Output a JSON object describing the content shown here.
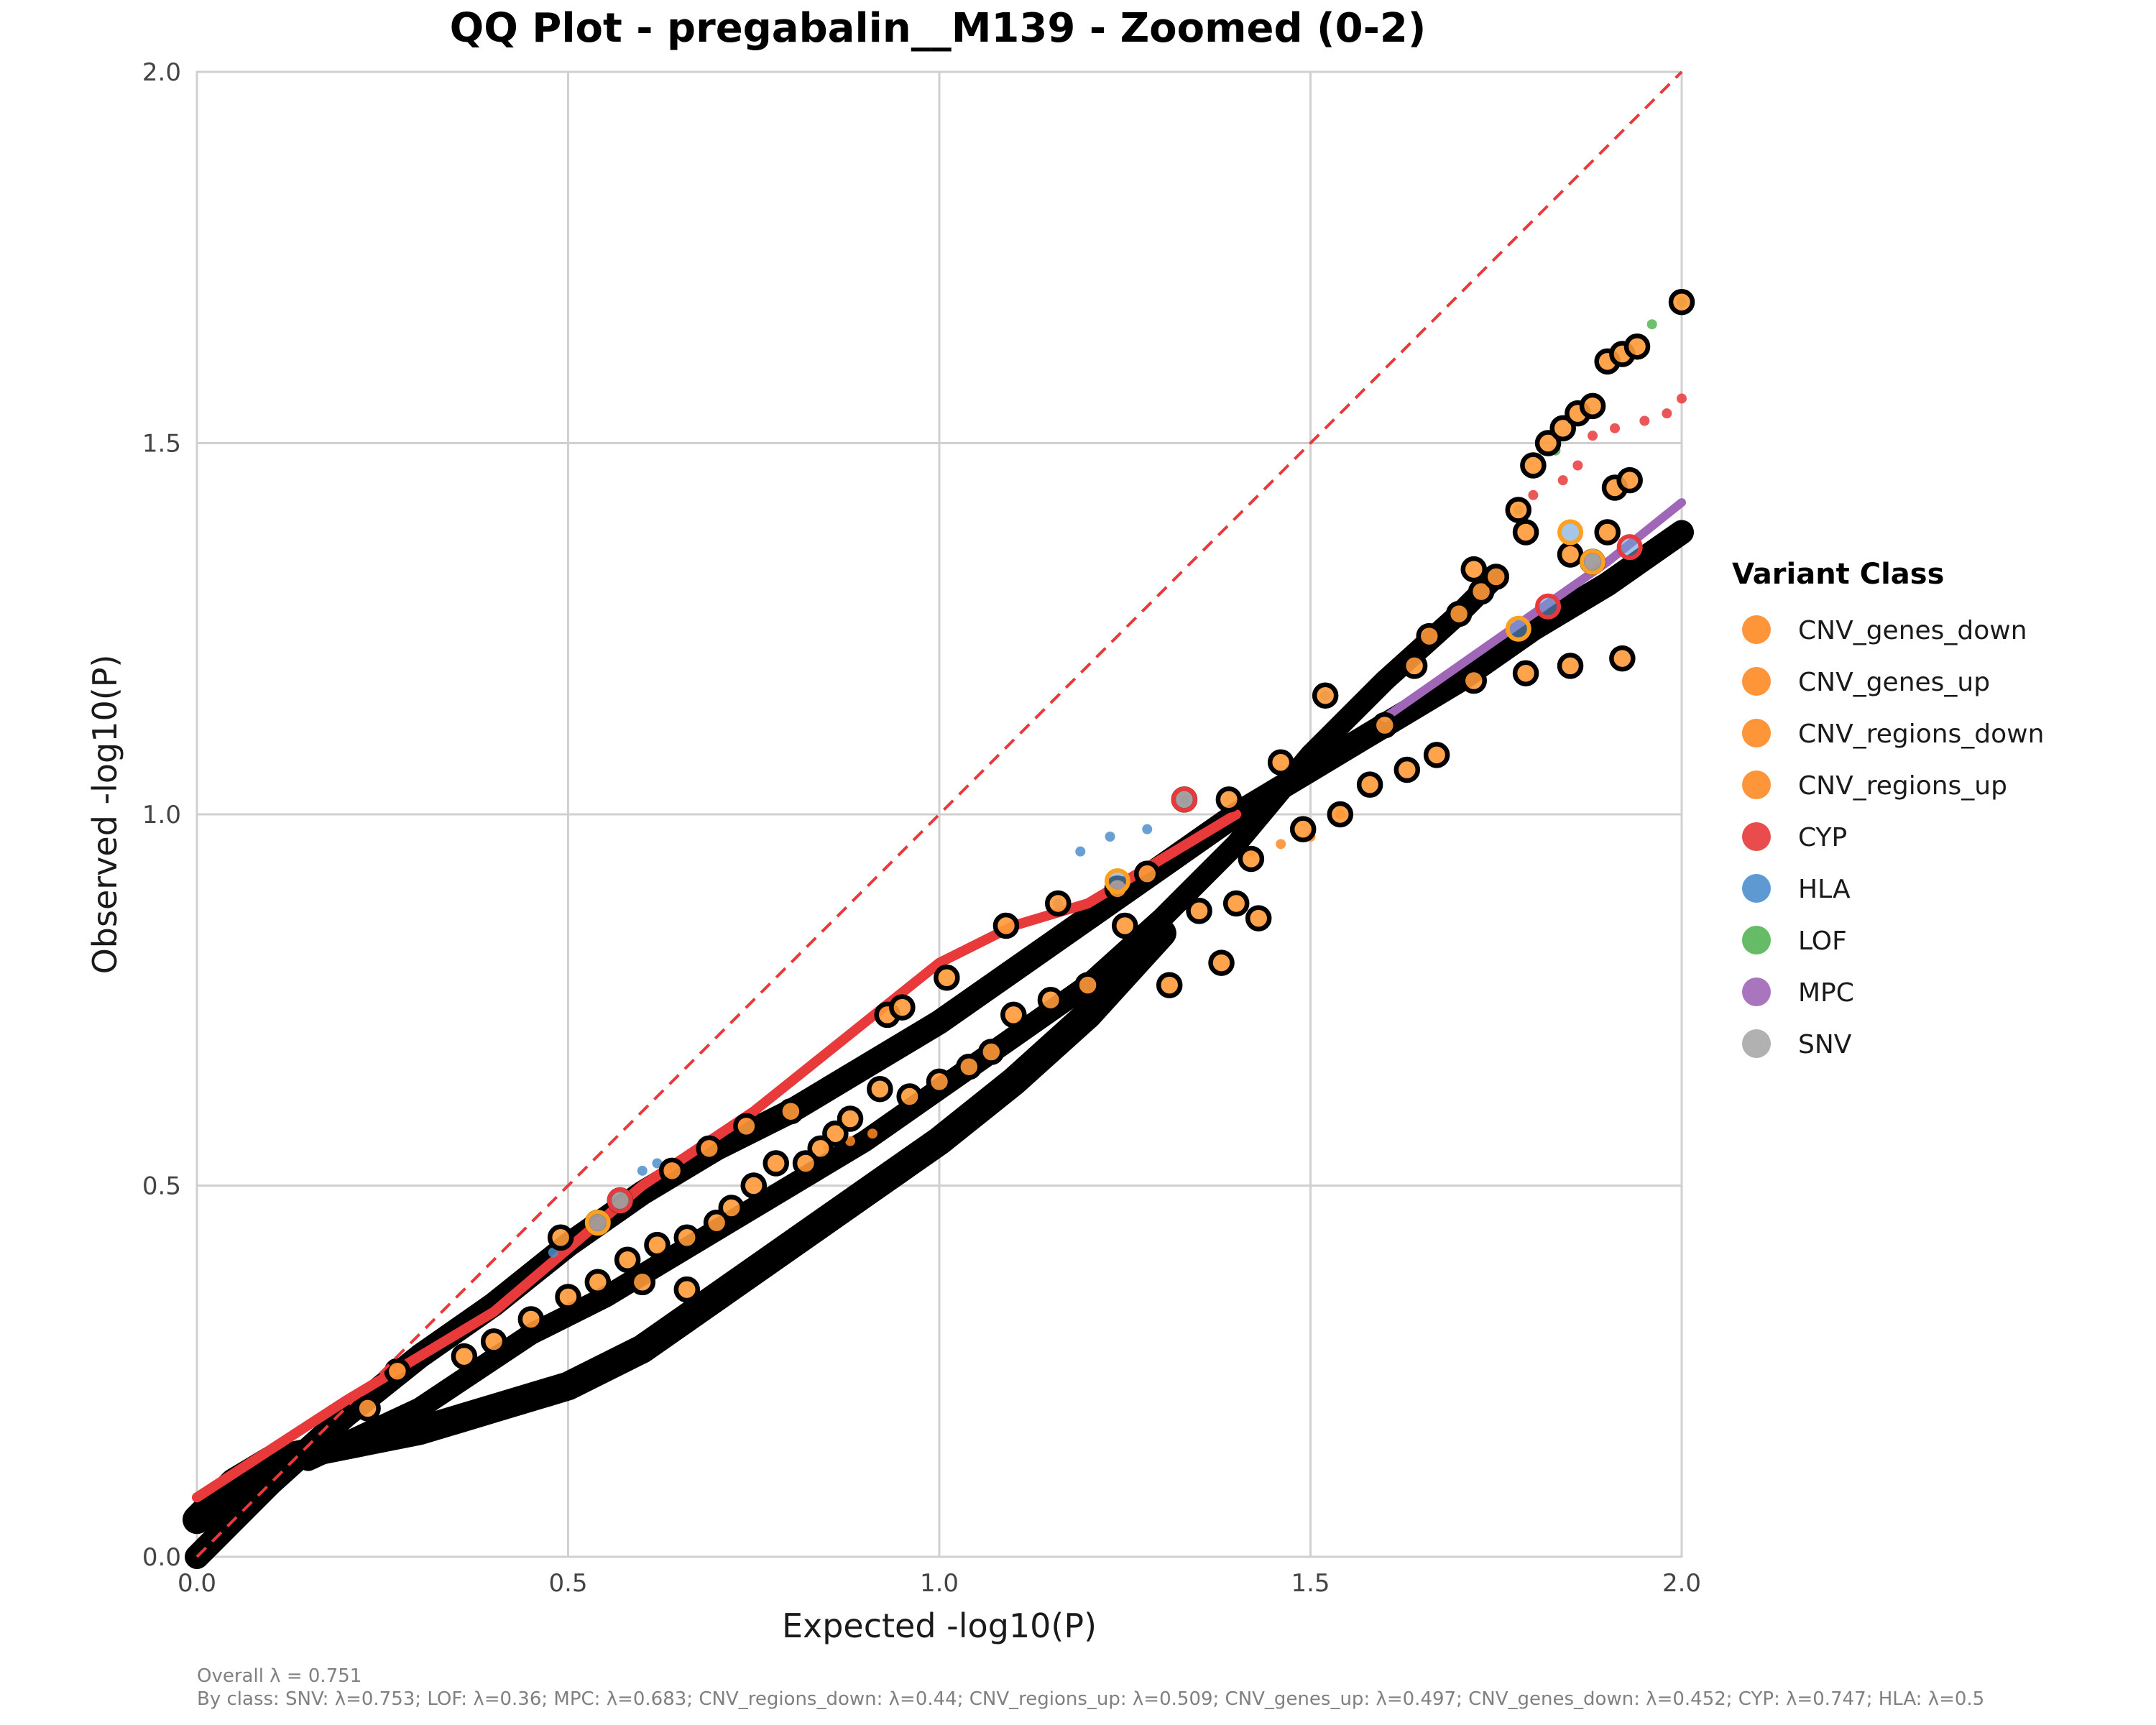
{
  "chart_data": {
    "type": "scatter",
    "title": "QQ Plot - pregabalin__M139 - Zoomed (0-2)",
    "xlabel": "Expected -log10(P)",
    "ylabel": "Observed -log10(P)",
    "xlim": [
      0,
      2
    ],
    "ylim": [
      0,
      2
    ],
    "xticks": [
      "0.0",
      "0.5",
      "1.0",
      "1.5",
      "2.0"
    ],
    "yticks": [
      "0.0",
      "0.5",
      "1.0",
      "1.5",
      "2.0"
    ],
    "grid": true,
    "reference_line": {
      "from": [
        0,
        0
      ],
      "to": [
        2,
        2
      ],
      "color": "#e8393b",
      "style": "dashed"
    },
    "legend": {
      "title": "Variant Class",
      "position": "right",
      "entries": [
        {
          "name": "CNV_genes_down",
          "color": "#ff8a24"
        },
        {
          "name": "CNV_genes_up",
          "color": "#ff8a24"
        },
        {
          "name": "CNV_regions_down",
          "color": "#ff8a24"
        },
        {
          "name": "CNV_regions_up",
          "color": "#ff8a24"
        },
        {
          "name": "CYP",
          "color": "#e8393b"
        },
        {
          "name": "HLA",
          "color": "#4d8fcc"
        },
        {
          "name": "LOF",
          "color": "#55b455"
        },
        {
          "name": "MPC",
          "color": "#a066b8"
        },
        {
          "name": "SNV",
          "color": "#a8a8a8"
        }
      ]
    },
    "lines": [
      {
        "name": "main",
        "color": "#000000",
        "points": [
          [
            0,
            0
          ],
          [
            0.1,
            0.1
          ],
          [
            0.2,
            0.19
          ],
          [
            0.3,
            0.27
          ],
          [
            0.4,
            0.34
          ],
          [
            0.5,
            0.42
          ],
          [
            0.6,
            0.49
          ],
          [
            0.7,
            0.55
          ],
          [
            0.8,
            0.6
          ],
          [
            0.9,
            0.66
          ],
          [
            1.0,
            0.72
          ],
          [
            1.1,
            0.79
          ],
          [
            1.2,
            0.86
          ],
          [
            1.3,
            0.93
          ],
          [
            1.4,
            1.0
          ],
          [
            1.5,
            1.06
          ],
          [
            1.6,
            1.12
          ],
          [
            1.7,
            1.18
          ],
          [
            1.8,
            1.25
          ],
          [
            1.9,
            1.31
          ],
          [
            2.0,
            1.38
          ]
        ]
      },
      {
        "name": "lower",
        "color": "#000000",
        "points": [
          [
            0,
            0.05
          ],
          [
            0.05,
            0.1
          ],
          [
            0.1,
            0.13
          ],
          [
            0.2,
            0.15
          ],
          [
            0.3,
            0.17
          ],
          [
            0.4,
            0.2
          ],
          [
            0.5,
            0.23
          ],
          [
            0.6,
            0.28
          ],
          [
            0.7,
            0.35
          ],
          [
            0.8,
            0.42
          ],
          [
            0.9,
            0.49
          ],
          [
            1.0,
            0.56
          ],
          [
            1.1,
            0.64
          ],
          [
            1.2,
            0.73
          ],
          [
            1.3,
            0.84
          ]
        ]
      },
      {
        "name": "middle",
        "color": "#000000",
        "points": [
          [
            0.15,
            0.13
          ],
          [
            0.3,
            0.2
          ],
          [
            0.45,
            0.3
          ],
          [
            0.55,
            0.35
          ],
          [
            0.7,
            0.44
          ],
          [
            0.8,
            0.5
          ],
          [
            0.9,
            0.56
          ],
          [
            1.0,
            0.63
          ],
          [
            1.1,
            0.7
          ],
          [
            1.2,
            0.77
          ],
          [
            1.3,
            0.86
          ],
          [
            1.4,
            0.96
          ],
          [
            1.5,
            1.08
          ],
          [
            1.6,
            1.18
          ],
          [
            1.7,
            1.27
          ],
          [
            1.75,
            1.32
          ]
        ]
      },
      {
        "name": "CYP",
        "color": "#e8393b",
        "points": [
          [
            0,
            0.08
          ],
          [
            0.2,
            0.21
          ],
          [
            0.4,
            0.33
          ],
          [
            0.6,
            0.5
          ],
          [
            0.75,
            0.6
          ],
          [
            0.9,
            0.72
          ],
          [
            1.0,
            0.8
          ],
          [
            1.1,
            0.85
          ],
          [
            1.2,
            0.88
          ],
          [
            1.3,
            0.94
          ],
          [
            1.4,
            1.0
          ]
        ]
      },
      {
        "name": "MPC",
        "color": "#a066b8",
        "points": [
          [
            1.6,
            1.13
          ],
          [
            1.7,
            1.2
          ],
          [
            1.8,
            1.27
          ],
          [
            1.9,
            1.34
          ],
          [
            2.0,
            1.42
          ]
        ]
      }
    ],
    "circled_points": [
      [
        0.23,
        0.2
      ],
      [
        0.27,
        0.25
      ],
      [
        0.49,
        0.43
      ],
      [
        0.54,
        0.45
      ],
      [
        0.57,
        0.48
      ],
      [
        0.64,
        0.52
      ],
      [
        0.69,
        0.55
      ],
      [
        0.74,
        0.58
      ],
      [
        0.8,
        0.6
      ],
      [
        0.86,
        0.57
      ],
      [
        0.93,
        0.73
      ],
      [
        0.95,
        0.74
      ],
      [
        1.01,
        0.78
      ],
      [
        1.09,
        0.85
      ],
      [
        1.16,
        0.88
      ],
      [
        1.24,
        0.9
      ],
      [
        1.28,
        0.92
      ],
      [
        1.33,
        1.02
      ],
      [
        1.39,
        1.02
      ],
      [
        1.42,
        0.94
      ],
      [
        1.35,
        0.87
      ],
      [
        1.4,
        0.88
      ],
      [
        1.38,
        0.8
      ],
      [
        1.43,
        0.86
      ],
      [
        1.31,
        0.77
      ],
      [
        1.46,
        1.07
      ],
      [
        1.49,
        0.98
      ],
      [
        1.52,
        1.16
      ],
      [
        1.54,
        1.0
      ],
      [
        1.58,
        1.04
      ],
      [
        1.63,
        1.06
      ],
      [
        1.67,
        1.08
      ],
      [
        1.6,
        1.12
      ],
      [
        1.64,
        1.2
      ],
      [
        1.66,
        1.24
      ],
      [
        1.7,
        1.27
      ],
      [
        1.73,
        1.3
      ],
      [
        1.72,
        1.33
      ],
      [
        1.75,
        1.32
      ],
      [
        1.78,
        1.41
      ],
      [
        1.79,
        1.38
      ],
      [
        1.8,
        1.47
      ],
      [
        1.82,
        1.5
      ],
      [
        1.84,
        1.52
      ],
      [
        1.86,
        1.54
      ],
      [
        1.88,
        1.55
      ],
      [
        1.9,
        1.61
      ],
      [
        1.92,
        1.62
      ],
      [
        1.94,
        1.63
      ],
      [
        1.91,
        1.44
      ],
      [
        1.93,
        1.45
      ],
      [
        1.85,
        1.35
      ],
      [
        1.88,
        1.34
      ],
      [
        1.9,
        1.38
      ],
      [
        1.85,
        1.2
      ],
      [
        1.79,
        1.19
      ],
      [
        1.72,
        1.18
      ],
      [
        1.92,
        1.21
      ],
      [
        2.0,
        1.69
      ],
      [
        1.25,
        0.85
      ],
      [
        1.2,
        0.77
      ],
      [
        1.15,
        0.75
      ],
      [
        1.1,
        0.73
      ],
      [
        1.07,
        0.68
      ],
      [
        1.04,
        0.66
      ],
      [
        1.0,
        0.64
      ],
      [
        0.96,
        0.62
      ],
      [
        0.92,
        0.63
      ],
      [
        0.88,
        0.59
      ],
      [
        0.84,
        0.55
      ],
      [
        0.82,
        0.53
      ],
      [
        0.78,
        0.53
      ],
      [
        0.75,
        0.5
      ],
      [
        0.72,
        0.47
      ],
      [
        0.7,
        0.45
      ],
      [
        0.66,
        0.43
      ],
      [
        0.62,
        0.42
      ],
      [
        0.58,
        0.4
      ],
      [
        0.54,
        0.37
      ],
      [
        0.5,
        0.35
      ],
      [
        0.45,
        0.32
      ],
      [
        0.4,
        0.29
      ],
      [
        0.36,
        0.27
      ],
      [
        0.6,
        0.37
      ],
      [
        0.66,
        0.36
      ]
    ],
    "colored_circles": [
      {
        "x": 1.33,
        "y": 1.02,
        "color": "#e8393b"
      },
      {
        "x": 1.82,
        "y": 1.28,
        "color": "#e8393b"
      },
      {
        "x": 1.93,
        "y": 1.36,
        "color": "#e8393b"
      },
      {
        "x": 0.57,
        "y": 0.48,
        "color": "#e8393b"
      },
      {
        "x": 1.24,
        "y": 0.91,
        "color": "#ffa020"
      },
      {
        "x": 1.85,
        "y": 1.38,
        "color": "#ffa020"
      },
      {
        "x": 1.88,
        "y": 1.34,
        "color": "#ffa020"
      },
      {
        "x": 1.78,
        "y": 1.25,
        "color": "#ffa020"
      },
      {
        "x": 0.54,
        "y": 0.45,
        "color": "#ffa020"
      }
    ],
    "small_points": [
      {
        "x": 1.23,
        "y": 0.97,
        "color": "#4d8fcc"
      },
      {
        "x": 1.28,
        "y": 0.98,
        "color": "#4d8fcc"
      },
      {
        "x": 1.19,
        "y": 0.95,
        "color": "#4d8fcc"
      },
      {
        "x": 1.33,
        "y": 1.02,
        "color": "#4d8fcc"
      },
      {
        "x": 0.6,
        "y": 0.52,
        "color": "#4d8fcc"
      },
      {
        "x": 0.62,
        "y": 0.53,
        "color": "#4d8fcc"
      },
      {
        "x": 1.52,
        "y": 1.16,
        "color": "#4d8fcc"
      },
      {
        "x": 1.16,
        "y": 0.88,
        "color": "#4d8fcc"
      },
      {
        "x": 0.48,
        "y": 0.41,
        "color": "#4d8fcc"
      },
      {
        "x": 1.96,
        "y": 1.66,
        "color": "#55b455"
      },
      {
        "x": 1.78,
        "y": 1.41,
        "color": "#55b455"
      },
      {
        "x": 1.83,
        "y": 1.49,
        "color": "#55b455"
      },
      {
        "x": 2.0,
        "y": 1.69,
        "color": "#55b455"
      },
      {
        "x": 1.88,
        "y": 1.51,
        "color": "#e8393b"
      },
      {
        "x": 1.91,
        "y": 1.52,
        "color": "#e8393b"
      },
      {
        "x": 1.95,
        "y": 1.53,
        "color": "#e8393b"
      },
      {
        "x": 1.98,
        "y": 1.54,
        "color": "#e8393b"
      },
      {
        "x": 2.0,
        "y": 1.56,
        "color": "#e8393b"
      },
      {
        "x": 1.84,
        "y": 1.45,
        "color": "#e8393b"
      },
      {
        "x": 1.86,
        "y": 1.47,
        "color": "#e8393b"
      },
      {
        "x": 1.8,
        "y": 1.43,
        "color": "#e8393b"
      },
      {
        "x": 1.5,
        "y": 0.97,
        "color": "#ff8a24"
      },
      {
        "x": 1.46,
        "y": 0.96,
        "color": "#ff8a24"
      },
      {
        "x": 1.42,
        "y": 0.95,
        "color": "#ff8a24"
      },
      {
        "x": 1.54,
        "y": 1.0,
        "color": "#ff8a24"
      },
      {
        "x": 0.88,
        "y": 0.56,
        "color": "#ff8a24"
      },
      {
        "x": 0.91,
        "y": 0.57,
        "color": "#ff8a24"
      },
      {
        "x": 0.85,
        "y": 0.55,
        "color": "#ff8a24"
      }
    ],
    "annotations": [
      "Overall λ = 0.751",
      "By class: SNV: λ=0.753; LOF: λ=0.36; MPC: λ=0.683; CNV_regions_down: λ=0.44; CNV_regions_up: λ=0.509; CNV_genes_up: λ=0.497; CNV_genes_down: λ=0.452; CYP: λ=0.747; HLA: λ=0.5"
    ]
  }
}
